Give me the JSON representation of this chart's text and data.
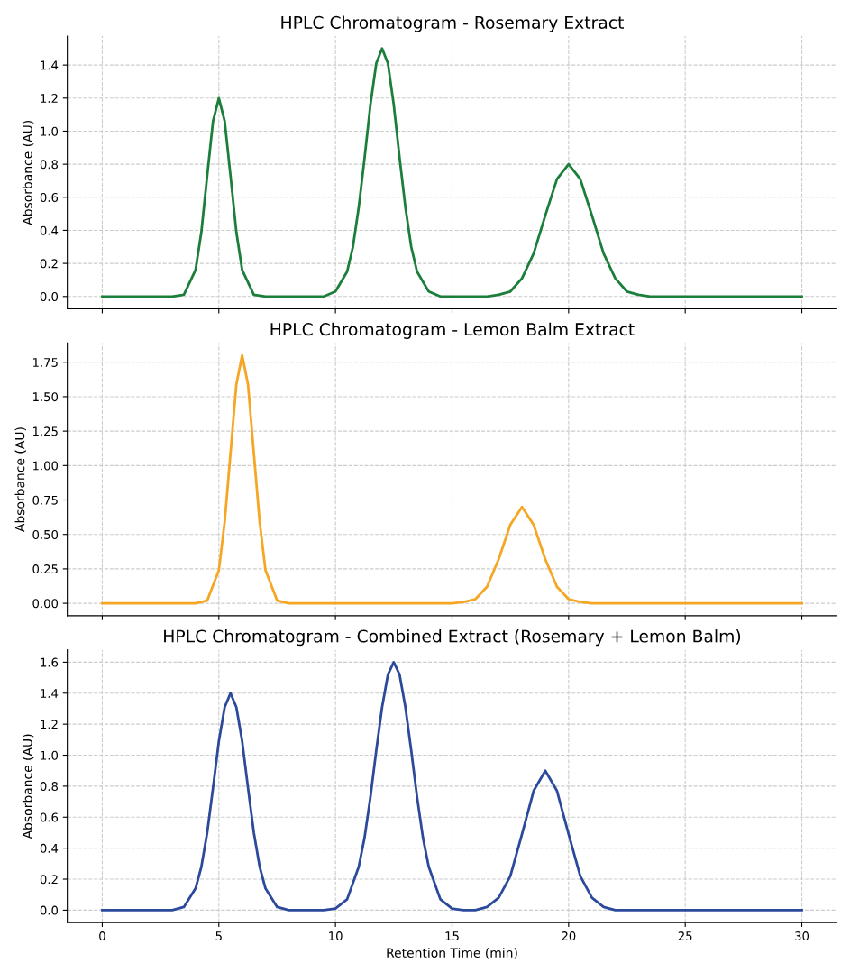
{
  "chart_data": [
    {
      "type": "line",
      "title": "HPLC Chromatogram - Rosemary Extract",
      "ylabel": "Absorbance (AU)",
      "xlim": [
        -1.5,
        31.5
      ],
      "xticks": [
        0,
        5,
        10,
        15,
        20,
        25,
        30
      ],
      "ylim": [
        -0.075,
        1.575
      ],
      "yticks": [
        {
          "value": 0,
          "label": "0.0"
        },
        {
          "value": 0.2,
          "label": "0.2"
        },
        {
          "value": 0.4,
          "label": "0.4"
        },
        {
          "value": 0.6,
          "label": "0.6"
        },
        {
          "value": 0.8,
          "label": "0.8"
        },
        {
          "value": 1.0,
          "label": "1.0"
        },
        {
          "value": 1.2,
          "label": "1.2"
        },
        {
          "value": 1.4,
          "label": "1.4"
        }
      ],
      "tick_labels": "y",
      "grid": true,
      "marker": "none",
      "line_style": "solid",
      "series": [
        {
          "color": "#1b7f3b",
          "x": [
            0,
            3,
            3.5,
            4,
            4.25,
            4.5,
            4.75,
            5,
            5.25,
            5.5,
            5.75,
            6,
            6.5,
            7,
            9.5,
            10,
            10.5,
            10.75,
            11,
            11.25,
            11.5,
            11.75,
            12,
            12.25,
            12.5,
            12.75,
            13,
            13.25,
            13.5,
            14,
            14.5,
            16.5,
            17,
            17.5,
            18,
            18.5,
            19,
            19.5,
            20,
            20.5,
            21,
            21.5,
            22,
            22.5,
            23,
            23.5,
            30
          ],
          "values": [
            0,
            0,
            0.01,
            0.16,
            0.39,
            0.73,
            1.06,
            1.2,
            1.06,
            0.73,
            0.39,
            0.16,
            0.01,
            0,
            0,
            0.03,
            0.15,
            0.3,
            0.54,
            0.84,
            1.16,
            1.41,
            1.5,
            1.41,
            1.16,
            0.84,
            0.54,
            0.3,
            0.15,
            0.03,
            0,
            0,
            0.01,
            0.03,
            0.11,
            0.26,
            0.49,
            0.71,
            0.8,
            0.71,
            0.49,
            0.26,
            0.11,
            0.03,
            0.01,
            0,
            0
          ]
        }
      ]
    },
    {
      "type": "line",
      "title": "HPLC Chromatogram - Lemon Balm Extract",
      "ylabel": "Absorbance (AU)",
      "xlim": [
        -1.5,
        31.5
      ],
      "xticks": [
        0,
        5,
        10,
        15,
        20,
        25,
        30
      ],
      "ylim": [
        -0.09,
        1.89
      ],
      "yticks": [
        {
          "value": 0,
          "label": "0.00"
        },
        {
          "value": 0.25,
          "label": "0.25"
        },
        {
          "value": 0.5,
          "label": "0.50"
        },
        {
          "value": 0.75,
          "label": "0.75"
        },
        {
          "value": 1.0,
          "label": "1.00"
        },
        {
          "value": 1.25,
          "label": "1.25"
        },
        {
          "value": 1.5,
          "label": "1.50"
        },
        {
          "value": 1.75,
          "label": "1.75"
        }
      ],
      "tick_labels": "y",
      "grid": true,
      "marker": "none",
      "line_style": "solid",
      "series": [
        {
          "color": "#f5a623",
          "x": [
            0,
            4,
            4.5,
            5,
            5.25,
            5.5,
            5.75,
            6,
            6.25,
            6.5,
            6.75,
            7,
            7.5,
            8,
            15,
            15.5,
            16,
            16.5,
            17,
            17.5,
            18,
            18.5,
            19,
            19.5,
            20,
            20.5,
            21,
            30
          ],
          "values": [
            0,
            0,
            0.02,
            0.24,
            0.59,
            1.09,
            1.59,
            1.8,
            1.59,
            1.09,
            0.59,
            0.24,
            0.02,
            0,
            0,
            0.01,
            0.03,
            0.12,
            0.32,
            0.57,
            0.7,
            0.57,
            0.32,
            0.12,
            0.03,
            0.01,
            0,
            0
          ]
        }
      ]
    },
    {
      "type": "line",
      "title": "HPLC Chromatogram - Combined Extract (Rosemary + Lemon Balm)",
      "xlabel": "Retention Time (min)",
      "ylabel": "Absorbance (AU)",
      "xlim": [
        -1.5,
        31.5
      ],
      "xticks": [
        0,
        5,
        10,
        15,
        20,
        25,
        30
      ],
      "ylim": [
        -0.08,
        1.68
      ],
      "yticks": [
        {
          "value": 0,
          "label": "0.0"
        },
        {
          "value": 0.2,
          "label": "0.2"
        },
        {
          "value": 0.4,
          "label": "0.4"
        },
        {
          "value": 0.6,
          "label": "0.6"
        },
        {
          "value": 0.8,
          "label": "0.8"
        },
        {
          "value": 1.0,
          "label": "1.0"
        },
        {
          "value": 1.2,
          "label": "1.2"
        },
        {
          "value": 1.4,
          "label": "1.4"
        },
        {
          "value": 1.6,
          "label": "1.6"
        }
      ],
      "grid": true,
      "marker": "none",
      "line_style": "solid",
      "series": [
        {
          "color": "#2b4a9c",
          "x": [
            0,
            3,
            3.5,
            4,
            4.25,
            4.5,
            4.75,
            5,
            5.25,
            5.5,
            5.75,
            6,
            6.25,
            6.5,
            6.75,
            7,
            7.5,
            8,
            9.5,
            10,
            10.5,
            11,
            11.25,
            11.5,
            11.75,
            12,
            12.25,
            12.5,
            12.75,
            13,
            13.25,
            13.5,
            13.75,
            14,
            14.5,
            15,
            15.5,
            16,
            16.5,
            17,
            17.5,
            18,
            18.5,
            19,
            19.5,
            20,
            20.5,
            21,
            21.5,
            22,
            30
          ],
          "values": [
            0,
            0,
            0.02,
            0.14,
            0.28,
            0.5,
            0.79,
            1.09,
            1.31,
            1.4,
            1.31,
            1.09,
            0.79,
            0.5,
            0.28,
            0.14,
            0.02,
            0,
            0,
            0.01,
            0.07,
            0.28,
            0.47,
            0.73,
            1.03,
            1.31,
            1.52,
            1.6,
            1.52,
            1.31,
            1.03,
            0.73,
            0.47,
            0.28,
            0.07,
            0.01,
            0,
            0,
            0.02,
            0.08,
            0.22,
            0.49,
            0.77,
            0.9,
            0.77,
            0.49,
            0.22,
            0.08,
            0.02,
            0,
            0
          ]
        }
      ]
    }
  ]
}
